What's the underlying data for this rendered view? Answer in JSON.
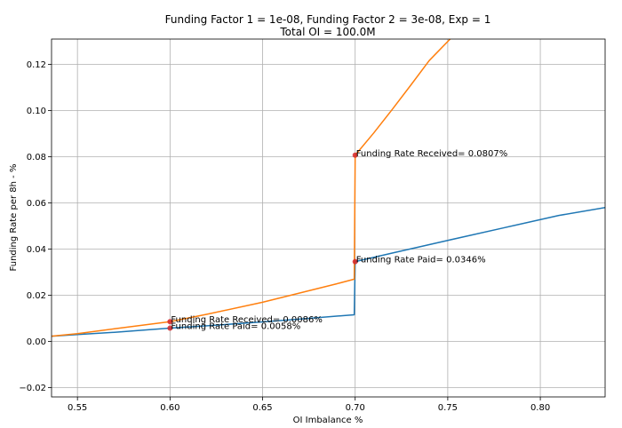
{
  "chart_data": {
    "type": "line",
    "title": "Funding Factor 1 = 1e-08, Funding Factor 2 = 3e-08, Exp = 1",
    "subtitle": "Total OI = 100.0M",
    "xlabel": "OI Imbalance %",
    "ylabel": "Funding Rate per 8h - %",
    "xlim": [
      0.536,
      0.835
    ],
    "ylim": [
      -0.024,
      0.131
    ],
    "xticks": [
      "0.55",
      "0.60",
      "0.65",
      "0.70",
      "0.75",
      "0.80"
    ],
    "yticks": [
      "−0.02",
      "0.00",
      "0.02",
      "0.04",
      "0.06",
      "0.08",
      "0.10",
      "0.12"
    ],
    "grid": true,
    "colors": {
      "paid": "#1f77b4",
      "received": "#ff7f0e",
      "marker": "#d62728"
    },
    "series": [
      {
        "x": [
          0.536,
          0.55,
          0.57,
          0.6,
          0.62,
          0.65,
          0.67,
          0.69,
          0.6995,
          0.7,
          0.72,
          0.75,
          0.78,
          0.81,
          0.835
        ],
        "values": [
          0.0023,
          0.003,
          0.004,
          0.0058,
          0.0068,
          0.0085,
          0.0097,
          0.011,
          0.0116,
          0.0346,
          0.0383,
          0.0438,
          0.0492,
          0.0546,
          0.058
        ]
      },
      {
        "x": [
          0.536,
          0.55,
          0.57,
          0.6,
          0.62,
          0.65,
          0.67,
          0.69,
          0.6995,
          0.7,
          0.71,
          0.72,
          0.73,
          0.74,
          0.752
        ],
        "values": [
          0.0023,
          0.0034,
          0.0055,
          0.0086,
          0.0118,
          0.017,
          0.021,
          0.025,
          0.027,
          0.0807,
          0.0903,
          0.1005,
          0.111,
          0.1217,
          0.1316
        ]
      }
    ],
    "annotations": [
      {
        "x": 0.7,
        "y": 0.0807,
        "text": "Funding Rate Received= 0.0807%"
      },
      {
        "x": 0.7,
        "y": 0.0346,
        "text": "Funding Rate Paid= 0.0346%"
      },
      {
        "x": 0.6,
        "y": 0.0086,
        "text": "Funding Rate Received= 0.0086%"
      },
      {
        "x": 0.6,
        "y": 0.0058,
        "text": "Funding Rate Paid= 0.0058%"
      }
    ]
  }
}
